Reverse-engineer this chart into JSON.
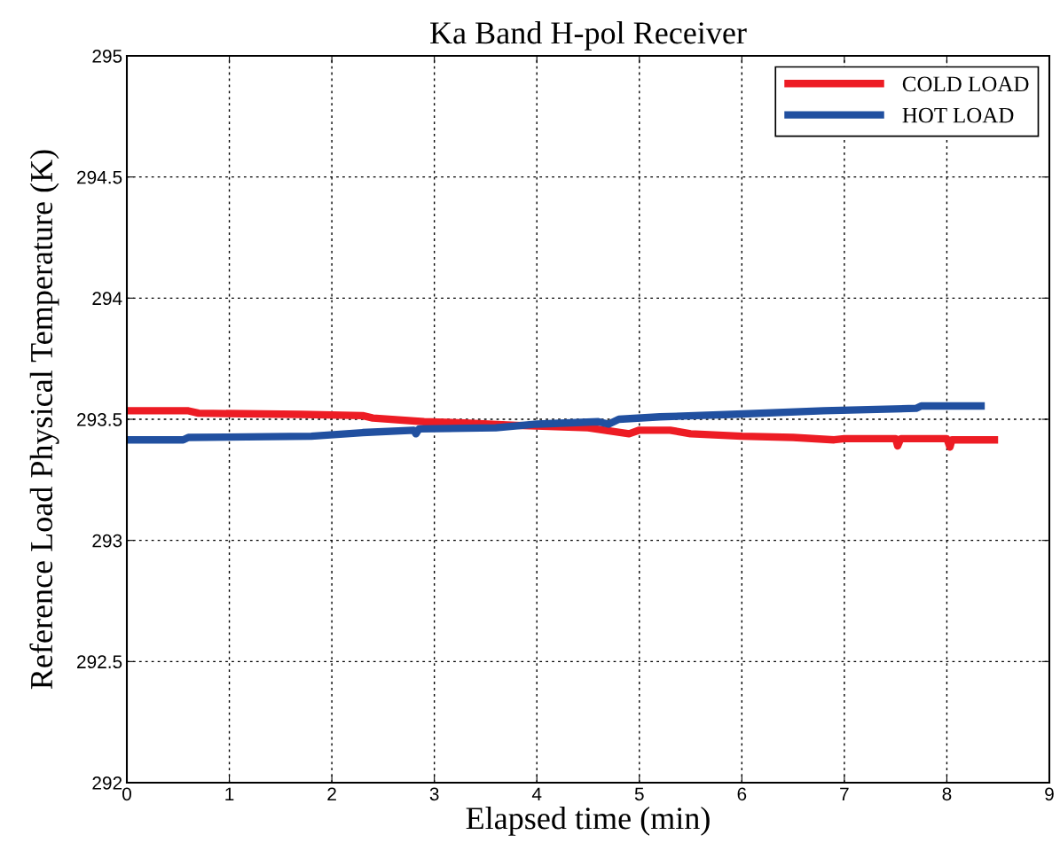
{
  "chart_data": {
    "type": "line",
    "title": "Ka Band H-pol Receiver",
    "xlabel": "Elapsed time (min)",
    "ylabel": "Reference Load Physical Temperature (K)",
    "xlim": [
      0,
      9
    ],
    "xticks": [
      0,
      1,
      2,
      3,
      4,
      5,
      6,
      7,
      8,
      9
    ],
    "ylim": [
      292,
      295
    ],
    "yticks": [
      292,
      292.5,
      293,
      293.5,
      294,
      294.5,
      295
    ],
    "grid": true,
    "legend": "top right",
    "line_style": "solid",
    "marker": "none",
    "series": [
      {
        "name": "COLD LOAD",
        "color": "#ed1c24",
        "x": [
          0,
          0.6,
          0.7,
          1.7,
          2.3,
          2.4,
          2.9,
          3.3,
          3.8,
          4.5,
          4.9,
          5.0,
          5.3,
          5.5,
          6.0,
          6.5,
          6.9,
          7.0,
          7.5,
          7.52,
          7.55,
          8.0,
          8.03,
          8.05,
          8.5
        ],
        "values": [
          293.535,
          293.535,
          293.525,
          293.52,
          293.515,
          293.505,
          293.49,
          293.485,
          293.475,
          293.465,
          293.44,
          293.455,
          293.455,
          293.44,
          293.43,
          293.425,
          293.415,
          293.42,
          293.42,
          293.39,
          293.42,
          293.42,
          293.385,
          293.415,
          293.415
        ]
      },
      {
        "name": "HOT LOAD",
        "color": "#2150a0",
        "x": [
          0,
          0.55,
          0.6,
          1.8,
          2.3,
          2.8,
          2.82,
          2.85,
          3.6,
          4.0,
          4.6,
          4.7,
          4.8,
          5.2,
          5.9,
          6.8,
          7.7,
          7.75,
          8.37
        ],
        "values": [
          293.415,
          293.415,
          293.425,
          293.43,
          293.445,
          293.455,
          293.44,
          293.46,
          293.465,
          293.48,
          293.49,
          293.48,
          293.5,
          293.51,
          293.52,
          293.535,
          293.545,
          293.555,
          293.555
        ]
      }
    ]
  }
}
